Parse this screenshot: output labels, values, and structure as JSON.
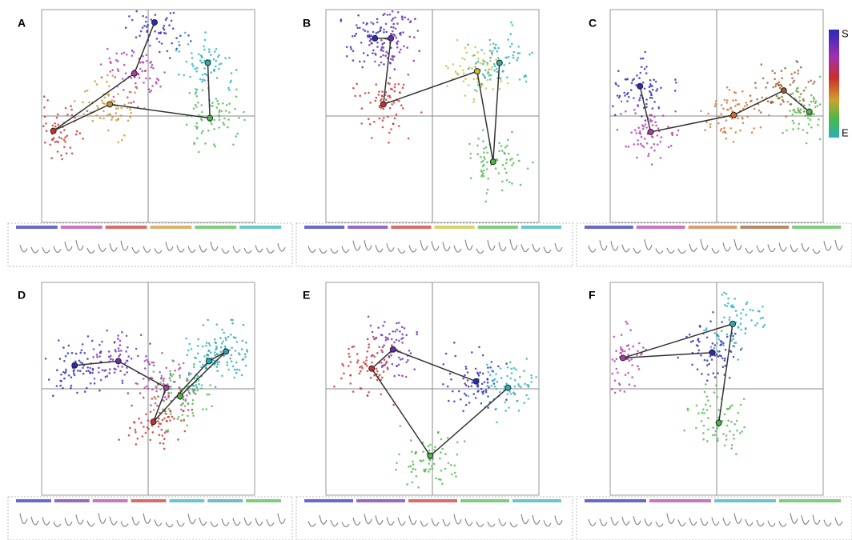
{
  "chart_data": [
    {
      "type": "scatter",
      "title": "A",
      "xlim": [
        -1,
        1
      ],
      "ylim": [
        -1,
        1
      ],
      "x": [
        0.06,
        -0.13,
        -0.89,
        -0.36,
        0.58,
        0.56
      ],
      "y": [
        0.88,
        0.4,
        -0.14,
        0.11,
        -0.02,
        0.5
      ],
      "colors": [
        "#2a2ab8",
        "#b03aa8",
        "#c8302a",
        "#d09030",
        "#4cb848",
        "#28b0b8"
      ]
    },
    {
      "type": "scatter",
      "title": "B",
      "xlim": [
        -1,
        1
      ],
      "ylim": [
        -1,
        1
      ],
      "x": [
        -0.54,
        -0.39,
        -0.46,
        0.42,
        0.57,
        0.63
      ],
      "y": [
        0.73,
        0.73,
        0.11,
        0.42,
        -0.43,
        0.5
      ],
      "colors": [
        "#2a2ab8",
        "#6a2ab0",
        "#c8302a",
        "#c8c030",
        "#4cb848",
        "#28b0b8"
      ]
    },
    {
      "type": "scatter",
      "title": "C",
      "xlim": [
        -1,
        1
      ],
      "ylim": [
        -1,
        1
      ],
      "x": [
        -0.72,
        -0.62,
        0.16,
        0.63,
        0.87
      ],
      "y": [
        0.28,
        -0.15,
        0.01,
        0.24,
        0.04
      ],
      "colors": [
        "#2a2ab8",
        "#b03aa8",
        "#d07030",
        "#9a5a28",
        "#4cb848"
      ]
    },
    {
      "type": "scatter",
      "title": "D",
      "xlim": [
        -1,
        1
      ],
      "ylim": [
        -1,
        1
      ],
      "x": [
        -0.69,
        -0.28,
        0.17,
        0.05,
        0.57,
        0.73,
        0.3
      ],
      "y": [
        0.22,
        0.26,
        0.01,
        -0.31,
        0.26,
        0.35,
        -0.07
      ],
      "colors": [
        "#2a2ab8",
        "#6a2ab0",
        "#b03aa8",
        "#c8302a",
        "#28b0b8",
        "#30a0b0",
        "#4cb848"
      ]
    },
    {
      "type": "scatter",
      "title": "E",
      "xlim": [
        -1,
        1
      ],
      "ylim": [
        -1,
        1
      ],
      "x": [
        0.41,
        -0.37,
        -0.57,
        -0.02,
        0.71
      ],
      "y": [
        0.07,
        0.37,
        0.19,
        -0.63,
        0.01
      ],
      "colors": [
        "#2a2ab8",
        "#6a2ab0",
        "#c8302a",
        "#4cb848",
        "#28b0b8"
      ]
    },
    {
      "type": "scatter",
      "title": "F",
      "xlim": [
        -1,
        1
      ],
      "ylim": [
        -1,
        1
      ],
      "x": [
        -0.04,
        -0.88,
        0.15,
        0.02
      ],
      "y": [
        0.34,
        0.29,
        0.61,
        -0.32
      ],
      "colors": [
        "#2a2ab8",
        "#b03aa8",
        "#28b0b8",
        "#4cb848"
      ]
    }
  ],
  "colorbar": {
    "start": "S",
    "end": "E"
  }
}
